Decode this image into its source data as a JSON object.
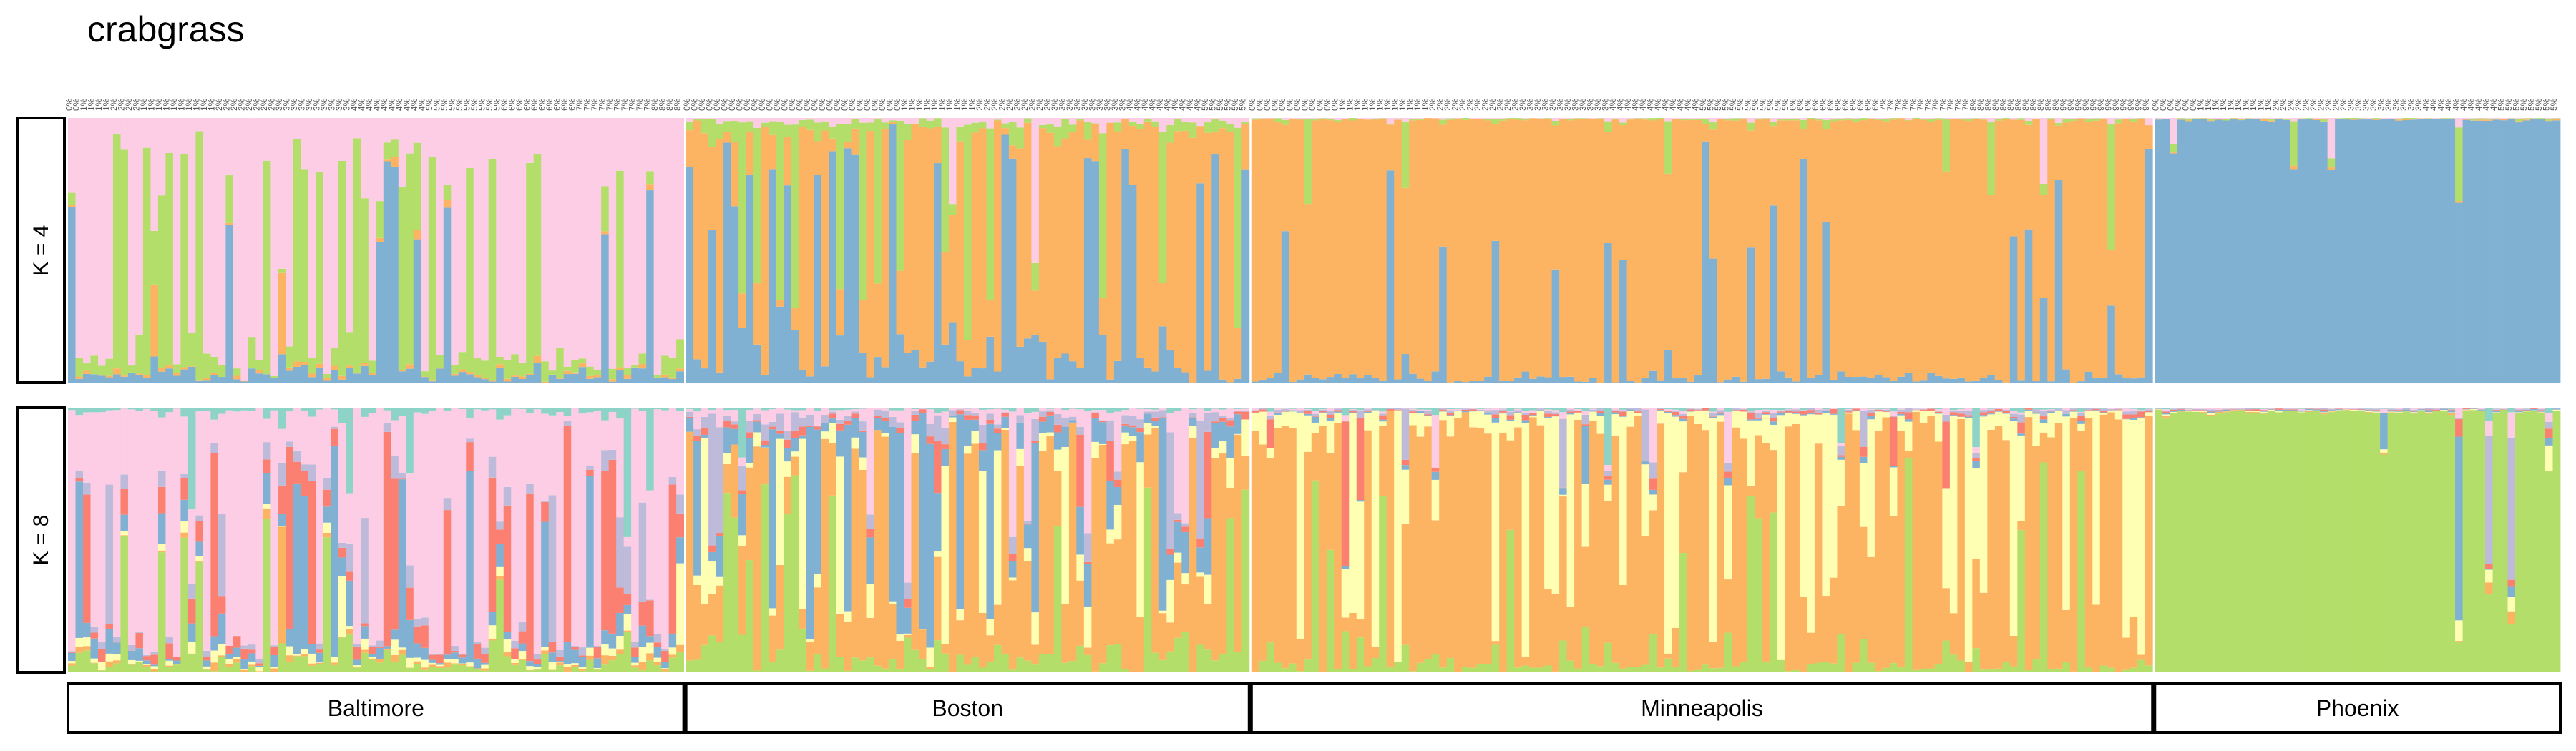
{
  "chart_data": {
    "type": "bar",
    "stacked": true,
    "normalized": true,
    "title": "crabgrass",
    "panels": [
      {
        "label": "K = 4",
        "k": 4
      },
      {
        "label": "K = 8",
        "k": 8
      }
    ],
    "groups": [
      {
        "name": "Baltimore",
        "n_samples": 82
      },
      {
        "name": "Boston",
        "n_samples": 75
      },
      {
        "name": "Minneapolis",
        "n_samples": 120
      },
      {
        "name": "Phoenix",
        "n_samples": 54
      }
    ],
    "sample_labels": {
      "Baltimore": [
        "0%",
        "0%",
        "1%",
        "1%",
        "1%",
        "1%",
        "2%",
        "2%",
        "2%",
        "2%",
        "1%",
        "1%",
        "1%",
        "1%",
        "1%",
        "1%",
        "1%",
        "1%",
        "1%",
        "1%",
        "2%",
        "2%",
        "2%",
        "2%",
        "2%",
        "2%",
        "2%",
        "2%",
        "3%",
        "3%",
        "3%",
        "3%",
        "3%",
        "3%",
        "3%",
        "3%",
        "3%",
        "3%",
        "4%",
        "4%",
        "4%",
        "4%",
        "4%",
        "4%",
        "4%",
        "4%",
        "4%",
        "4%",
        "5%",
        "5%",
        "5%",
        "5%",
        "5%",
        "5%",
        "5%",
        "5%",
        "5%",
        "5%",
        "6%",
        "6%",
        "6%",
        "6%",
        "6%",
        "6%",
        "6%",
        "6%",
        "6%",
        "6%",
        "7%",
        "7%",
        "7%",
        "7%",
        "7%",
        "7%",
        "7%",
        "7%",
        "7%",
        "7%",
        "8%",
        "8%",
        "8%",
        "8%"
      ],
      "Boston": [
        "0%",
        "0%",
        "0%",
        "0%",
        "0%",
        "0%",
        "0%",
        "0%",
        "0%",
        "0%",
        "0%",
        "0%",
        "0%",
        "0%",
        "0%",
        "0%",
        "0%",
        "0%",
        "0%",
        "0%",
        "0%",
        "0%",
        "0%",
        "0%",
        "0%",
        "0%",
        "0%",
        "0%",
        "0%",
        "1%",
        "1%",
        "1%",
        "1%",
        "1%",
        "1%",
        "1%",
        "1%",
        "1%",
        "1%",
        "2%",
        "2%",
        "2%",
        "2%",
        "2%",
        "2%",
        "2%",
        "2%",
        "2%",
        "2%",
        "3%",
        "3%",
        "3%",
        "3%",
        "3%",
        "3%",
        "3%",
        "3%",
        "3%",
        "3%",
        "4%",
        "4%",
        "4%",
        "4%",
        "4%",
        "4%",
        "4%",
        "4%",
        "4%",
        "4%",
        "5%",
        "5%",
        "5%",
        "5%",
        "5%",
        "5%"
      ],
      "Minneapolis": [
        "0%",
        "0%",
        "0%",
        "0%",
        "0%",
        "0%",
        "0%",
        "0%",
        "0%",
        "0%",
        "0%",
        "0%",
        "1%",
        "1%",
        "1%",
        "1%",
        "1%",
        "1%",
        "1%",
        "1%",
        "1%",
        "1%",
        "1%",
        "1%",
        "2%",
        "2%",
        "2%",
        "2%",
        "2%",
        "2%",
        "2%",
        "2%",
        "2%",
        "2%",
        "2%",
        "2%",
        "3%",
        "3%",
        "3%",
        "3%",
        "3%",
        "3%",
        "3%",
        "3%",
        "3%",
        "3%",
        "3%",
        "3%",
        "4%",
        "4%",
        "4%",
        "4%",
        "4%",
        "4%",
        "4%",
        "4%",
        "4%",
        "4%",
        "4%",
        "4%",
        "5%",
        "5%",
        "5%",
        "5%",
        "5%",
        "5%",
        "5%",
        "5%",
        "5%",
        "5%",
        "5%",
        "5%",
        "6%",
        "6%",
        "6%",
        "6%",
        "6%",
        "6%",
        "6%",
        "6%",
        "6%",
        "6%",
        "6%",
        "6%",
        "7%",
        "7%",
        "7%",
        "7%",
        "7%",
        "7%",
        "7%",
        "7%",
        "7%",
        "7%",
        "7%",
        "7%",
        "8%",
        "8%",
        "8%",
        "8%",
        "8%",
        "8%",
        "8%",
        "8%",
        "8%",
        "8%",
        "8%",
        "8%",
        "9%",
        "9%",
        "9%",
        "9%",
        "9%",
        "9%",
        "9%",
        "9%",
        "9%",
        "9%",
        "9%",
        "9%"
      ],
      "Phoenix": [
        "0%",
        "0%",
        "0%",
        "0%",
        "0%",
        "0%",
        "1%",
        "1%",
        "1%",
        "1%",
        "1%",
        "1%",
        "1%",
        "1%",
        "1%",
        "1%",
        "2%",
        "2%",
        "2%",
        "2%",
        "2%",
        "2%",
        "2%",
        "2%",
        "2%",
        "2%",
        "3%",
        "3%",
        "3%",
        "3%",
        "3%",
        "3%",
        "3%",
        "3%",
        "3%",
        "3%",
        "4%",
        "4%",
        "4%",
        "4%",
        "4%",
        "4%",
        "4%",
        "4%",
        "4%",
        "4%",
        "5%",
        "5%",
        "5%",
        "5%",
        "5%",
        "5%",
        "5%",
        "5%"
      ]
    },
    "clusters_k4": [
      {
        "id": 1,
        "color": "#80b1d3"
      },
      {
        "id": 2,
        "color": "#fdb462"
      },
      {
        "id": 3,
        "color": "#b3de69"
      },
      {
        "id": 4,
        "color": "#fccde5"
      }
    ],
    "clusters_k8": [
      {
        "id": 1,
        "color": "#b3de69"
      },
      {
        "id": 2,
        "color": "#fdb462"
      },
      {
        "id": 3,
        "color": "#ffffb3"
      },
      {
        "id": 4,
        "color": "#80b1d3"
      },
      {
        "id": 5,
        "color": "#fb8072"
      },
      {
        "id": 6,
        "color": "#bebada"
      },
      {
        "id": 7,
        "color": "#fccde5"
      },
      {
        "id": 8,
        "color": "#8dd3c7"
      }
    ],
    "group_profiles": {
      "K = 4": {
        "Baltimore": [
          0.12,
          0.02,
          0.3,
          0.56
        ],
        "Boston": [
          0.3,
          0.5,
          0.15,
          0.05
        ],
        "Minneapolis": [
          0.12,
          0.86,
          0.02,
          0.0
        ],
        "Phoenix": [
          0.99,
          0.0,
          0.01,
          0.0
        ]
      },
      "K = 8": {
        "Baltimore": [
          0.1,
          0.02,
          0.04,
          0.12,
          0.14,
          0.07,
          0.48,
          0.03
        ],
        "Boston": [
          0.15,
          0.4,
          0.12,
          0.18,
          0.02,
          0.06,
          0.07,
          0.0
        ],
        "Minneapolis": [
          0.1,
          0.6,
          0.28,
          0.0,
          0.01,
          0.01,
          0.0,
          0.0
        ],
        "Phoenix": [
          0.99,
          0.0,
          0.0,
          0.01,
          0.0,
          0.0,
          0.0,
          0.0
        ]
      }
    },
    "ylim": [
      0,
      1
    ],
    "legend": "none"
  }
}
